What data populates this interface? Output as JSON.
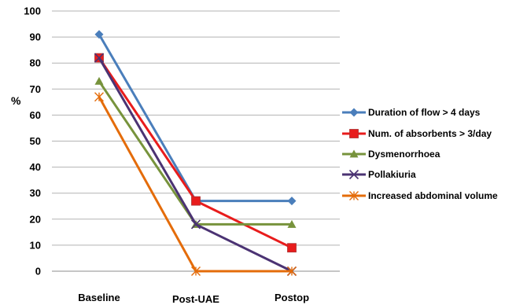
{
  "chart_data": {
    "type": "line",
    "title": "",
    "xlabel": "",
    "ylabel": "%",
    "categories": [
      "Baseline",
      "Post-UAE",
      "Postop"
    ],
    "ylim": [
      0,
      100
    ],
    "yticks": [
      0,
      10,
      20,
      30,
      40,
      50,
      60,
      70,
      80,
      90,
      100
    ],
    "grid": "horizontal",
    "legend_position": "right",
    "series": [
      {
        "name": "Duration of flow > 4 days",
        "values": [
          91,
          27,
          27
        ],
        "color": "#4a7ebb",
        "marker": "diamond"
      },
      {
        "name": "Num. of absorbents > 3/day",
        "values": [
          82,
          27,
          9
        ],
        "color": "#e81c1c",
        "marker": "square"
      },
      {
        "name": "Dysmenorrhoea",
        "values": [
          73,
          18,
          18
        ],
        "color": "#77933c",
        "marker": "triangle"
      },
      {
        "name": "Pollakiuria",
        "values": [
          82,
          18,
          0
        ],
        "color": "#4b3373",
        "marker": "x"
      },
      {
        "name": "Increased abdominal volume",
        "values": [
          67,
          0,
          0
        ],
        "color": "#e46c0a",
        "marker": "star"
      }
    ]
  }
}
